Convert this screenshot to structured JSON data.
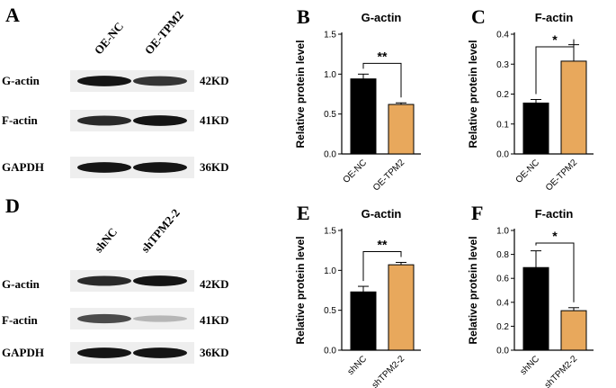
{
  "blots": [
    {
      "letter": "A",
      "lanes": [
        "OE-NC",
        "OE-TPM2"
      ],
      "rows": [
        {
          "label": "G-actin",
          "kd": "42KD",
          "intensity": [
            0.95,
            0.8
          ]
        },
        {
          "label": "F-actin",
          "kd": "41KD",
          "intensity": [
            0.85,
            0.95
          ]
        },
        {
          "label": "GAPDH",
          "kd": "36KD",
          "intensity": [
            0.95,
            0.95
          ]
        }
      ]
    },
    {
      "letter": "D",
      "lanes": [
        "shNC",
        "shTPM2-2"
      ],
      "rows": [
        {
          "label": "G-actin",
          "kd": "42KD",
          "intensity": [
            0.85,
            0.95
          ]
        },
        {
          "label": "F-actin",
          "kd": "41KD",
          "intensity": [
            0.7,
            0.2
          ]
        },
        {
          "label": "GAPDH",
          "kd": "36KD",
          "intensity": [
            0.95,
            0.95
          ]
        }
      ]
    }
  ],
  "chart_data": [
    {
      "letter": "B",
      "type": "bar",
      "title": "G-actin",
      "ylabel": "Relative protein level",
      "ylim": [
        0,
        1.5
      ],
      "yticks": [
        "0.0",
        "0.5",
        "1.0",
        "1.5"
      ],
      "categories": [
        "OE-NC",
        "OE-TPM2"
      ],
      "values": [
        0.94,
        0.62
      ],
      "errors": [
        0.06,
        0.02
      ],
      "significance": "**",
      "colors": [
        "#000000",
        "#e8a85c"
      ]
    },
    {
      "letter": "C",
      "type": "bar",
      "title": "F-actin",
      "ylabel": "Relative protein level",
      "ylim": [
        0,
        0.4
      ],
      "yticks": [
        "0.0",
        "0.1",
        "0.2",
        "0.3",
        "0.4"
      ],
      "categories": [
        "OE-NC",
        "OE-TPM2"
      ],
      "values": [
        0.17,
        0.31
      ],
      "errors": [
        0.012,
        0.055
      ],
      "significance": "*",
      "colors": [
        "#000000",
        "#e8a85c"
      ]
    },
    {
      "letter": "E",
      "type": "bar",
      "title": "G-actin",
      "ylabel": "Relative protein level",
      "ylim": [
        0,
        1.5
      ],
      "yticks": [
        "0.0",
        "0.5",
        "1.0",
        "1.5"
      ],
      "categories": [
        "shNC",
        "shTPM2-2"
      ],
      "values": [
        0.73,
        1.07
      ],
      "errors": [
        0.07,
        0.03
      ],
      "significance": "**",
      "colors": [
        "#000000",
        "#e8a85c"
      ]
    },
    {
      "letter": "F",
      "type": "bar",
      "title": "F-actin",
      "ylabel": "Relative protein level",
      "ylim": [
        0,
        1.0
      ],
      "yticks": [
        "0.0",
        "0.2",
        "0.4",
        "0.6",
        "0.8",
        "1.0"
      ],
      "categories": [
        "shNC",
        "shTPM2-2"
      ],
      "values": [
        0.69,
        0.33
      ],
      "errors": [
        0.14,
        0.025
      ],
      "significance": "*",
      "colors": [
        "#000000",
        "#e8a85c"
      ]
    }
  ]
}
